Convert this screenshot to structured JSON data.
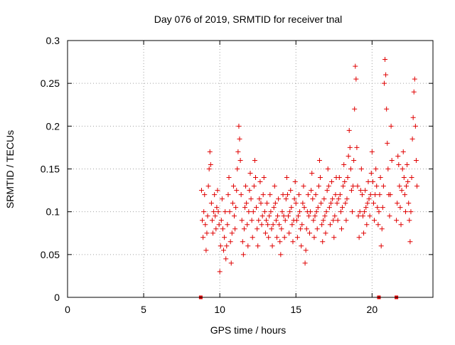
{
  "chart_data": {
    "type": "scatter",
    "title": "Day 076 of 2019, SRMTID for receiver tnal",
    "xlabel": "GPS time / hours",
    "ylabel": "SRMTID / TECUs",
    "xlim": [
      0,
      24
    ],
    "ylim": [
      0,
      0.3
    ],
    "x_ticks": [
      0,
      5,
      10,
      15,
      20
    ],
    "x_tick_labels": [
      "0",
      "5",
      "10",
      "15",
      "20"
    ],
    "y_ticks": [
      0,
      0.05,
      0.1,
      0.15,
      0.2,
      0.25,
      0.3
    ],
    "y_tick_labels": [
      "0",
      "0.05",
      "0.1",
      "0.15",
      "0.2",
      "0.25",
      "0.3"
    ],
    "grid": true,
    "marker": "plus",
    "color": "#e00000",
    "points": [
      [
        8.8,
        0.125
      ],
      [
        8.85,
        0.09
      ],
      [
        8.9,
        0.07
      ],
      [
        8.95,
        0.1
      ],
      [
        9.0,
        0.12
      ],
      [
        9.05,
        0.085
      ],
      [
        9.1,
        0.055
      ],
      [
        9.15,
        0.075
      ],
      [
        9.2,
        0.095
      ],
      [
        9.25,
        0.13
      ],
      [
        9.3,
        0.15
      ],
      [
        9.35,
        0.17
      ],
      [
        9.4,
        0.155
      ],
      [
        9.45,
        0.11
      ],
      [
        9.5,
        0.09
      ],
      [
        9.55,
        0.075
      ],
      [
        9.6,
        0.1
      ],
      [
        9.65,
        0.12
      ],
      [
        9.7,
        0.095
      ],
      [
        9.75,
        0.08
      ],
      [
        9.8,
        0.105
      ],
      [
        9.85,
        0.125
      ],
      [
        9.9,
        0.1
      ],
      [
        9.95,
        0.085
      ],
      [
        10.0,
        0.03
      ],
      [
        10.05,
        0.06
      ],
      [
        10.1,
        0.09
      ],
      [
        10.15,
        0.115
      ],
      [
        10.2,
        0.08
      ],
      [
        10.25,
        0.055
      ],
      [
        10.3,
        0.07
      ],
      [
        10.35,
        0.1
      ],
      [
        10.4,
        0.045
      ],
      [
        10.45,
        0.06
      ],
      [
        10.5,
        0.085
      ],
      [
        10.55,
        0.12
      ],
      [
        10.6,
        0.14
      ],
      [
        10.65,
        0.1
      ],
      [
        10.7,
        0.065
      ],
      [
        10.75,
        0.04
      ],
      [
        10.8,
        0.075
      ],
      [
        10.85,
        0.11
      ],
      [
        10.9,
        0.13
      ],
      [
        10.95,
        0.095
      ],
      [
        11.0,
        0.08
      ],
      [
        11.05,
        0.105
      ],
      [
        11.1,
        0.125
      ],
      [
        11.15,
        0.15
      ],
      [
        11.2,
        0.17
      ],
      [
        11.25,
        0.2
      ],
      [
        11.3,
        0.185
      ],
      [
        11.35,
        0.16
      ],
      [
        11.4,
        0.12
      ],
      [
        11.45,
        0.09
      ],
      [
        11.5,
        0.065
      ],
      [
        11.55,
        0.05
      ],
      [
        11.6,
        0.08
      ],
      [
        11.65,
        0.105
      ],
      [
        11.7,
        0.13
      ],
      [
        11.75,
        0.11
      ],
      [
        11.8,
        0.085
      ],
      [
        11.85,
        0.06
      ],
      [
        11.9,
        0.1
      ],
      [
        11.95,
        0.125
      ],
      [
        12.0,
        0.145
      ],
      [
        12.05,
        0.115
      ],
      [
        12.1,
        0.09
      ],
      [
        12.15,
        0.07
      ],
      [
        12.2,
        0.1
      ],
      [
        12.25,
        0.13
      ],
      [
        12.3,
        0.16
      ],
      [
        12.35,
        0.14
      ],
      [
        12.4,
        0.105
      ],
      [
        12.45,
        0.08
      ],
      [
        12.5,
        0.06
      ],
      [
        12.55,
        0.09
      ],
      [
        12.6,
        0.115
      ],
      [
        12.65,
        0.135
      ],
      [
        12.7,
        0.11
      ],
      [
        12.75,
        0.085
      ],
      [
        12.8,
        0.095
      ],
      [
        12.85,
        0.12
      ],
      [
        12.9,
        0.14
      ],
      [
        12.95,
        0.1
      ],
      [
        13.0,
        0.075
      ],
      [
        13.05,
        0.09
      ],
      [
        13.1,
        0.11
      ],
      [
        13.15,
        0.085
      ],
      [
        13.2,
        0.07
      ],
      [
        13.25,
        0.095
      ],
      [
        13.3,
        0.12
      ],
      [
        13.35,
        0.1
      ],
      [
        13.4,
        0.08
      ],
      [
        13.45,
        0.06
      ],
      [
        13.5,
        0.085
      ],
      [
        13.55,
        0.105
      ],
      [
        13.6,
        0.13
      ],
      [
        13.65,
        0.11
      ],
      [
        13.7,
        0.09
      ],
      [
        13.75,
        0.07
      ],
      [
        13.8,
        0.095
      ],
      [
        13.85,
        0.115
      ],
      [
        13.9,
        0.085
      ],
      [
        13.95,
        0.065
      ],
      [
        14.0,
        0.05
      ],
      [
        14.05,
        0.08
      ],
      [
        14.1,
        0.1
      ],
      [
        14.15,
        0.12
      ],
      [
        14.2,
        0.095
      ],
      [
        14.25,
        0.07
      ],
      [
        14.3,
        0.09
      ],
      [
        14.35,
        0.115
      ],
      [
        14.4,
        0.14
      ],
      [
        14.45,
        0.12
      ],
      [
        14.5,
        0.095
      ],
      [
        14.55,
        0.075
      ],
      [
        14.6,
        0.1
      ],
      [
        14.65,
        0.125
      ],
      [
        14.7,
        0.105
      ],
      [
        14.75,
        0.085
      ],
      [
        14.8,
        0.065
      ],
      [
        14.85,
        0.09
      ],
      [
        14.9,
        0.115
      ],
      [
        14.95,
        0.135
      ],
      [
        15.0,
        0.11
      ],
      [
        15.05,
        0.09
      ],
      [
        15.1,
        0.07
      ],
      [
        15.15,
        0.095
      ],
      [
        15.2,
        0.12
      ],
      [
        15.25,
        0.1
      ],
      [
        15.3,
        0.08
      ],
      [
        15.35,
        0.06
      ],
      [
        15.4,
        0.085
      ],
      [
        15.45,
        0.11
      ],
      [
        15.5,
        0.13
      ],
      [
        15.55,
        0.105
      ],
      [
        15.6,
        0.04
      ],
      [
        15.65,
        0.055
      ],
      [
        15.7,
        0.08
      ],
      [
        15.75,
        0.1
      ],
      [
        15.8,
        0.12
      ],
      [
        15.85,
        0.095
      ],
      [
        15.9,
        0.075
      ],
      [
        15.95,
        0.1
      ],
      [
        16.0,
        0.125
      ],
      [
        16.05,
        0.145
      ],
      [
        16.1,
        0.115
      ],
      [
        16.15,
        0.09
      ],
      [
        16.2,
        0.07
      ],
      [
        16.25,
        0.095
      ],
      [
        16.3,
        0.12
      ],
      [
        16.35,
        0.1
      ],
      [
        16.4,
        0.08
      ],
      [
        16.45,
        0.105
      ],
      [
        16.5,
        0.13
      ],
      [
        16.55,
        0.16
      ],
      [
        16.6,
        0.14
      ],
      [
        16.65,
        0.11
      ],
      [
        16.7,
        0.085
      ],
      [
        16.75,
        0.065
      ],
      [
        16.8,
        0.09
      ],
      [
        16.85,
        0.115
      ],
      [
        16.9,
        0.095
      ],
      [
        16.95,
        0.075
      ],
      [
        17.0,
        0.1
      ],
      [
        17.05,
        0.125
      ],
      [
        17.1,
        0.15
      ],
      [
        17.15,
        0.13
      ],
      [
        17.2,
        0.105
      ],
      [
        17.25,
        0.085
      ],
      [
        17.3,
        0.11
      ],
      [
        17.35,
        0.135
      ],
      [
        17.4,
        0.115
      ],
      [
        17.45,
        0.09
      ],
      [
        17.5,
        0.07
      ],
      [
        17.55,
        0.095
      ],
      [
        17.6,
        0.12
      ],
      [
        17.65,
        0.14
      ],
      [
        17.7,
        0.11
      ],
      [
        17.75,
        0.09
      ],
      [
        17.8,
        0.115
      ],
      [
        17.85,
        0.14
      ],
      [
        17.9,
        0.12
      ],
      [
        17.95,
        0.1
      ],
      [
        18.0,
        0.08
      ],
      [
        18.05,
        0.105
      ],
      [
        18.1,
        0.13
      ],
      [
        18.15,
        0.155
      ],
      [
        18.2,
        0.135
      ],
      [
        18.25,
        0.11
      ],
      [
        18.3,
        0.09
      ],
      [
        18.35,
        0.115
      ],
      [
        18.4,
        0.14
      ],
      [
        18.45,
        0.165
      ],
      [
        18.5,
        0.195
      ],
      [
        18.55,
        0.175
      ],
      [
        18.6,
        0.15
      ],
      [
        18.65,
        0.125
      ],
      [
        18.7,
        0.1
      ],
      [
        18.75,
        0.13
      ],
      [
        18.8,
        0.16
      ],
      [
        18.85,
        0.22
      ],
      [
        18.9,
        0.27
      ],
      [
        18.95,
        0.255
      ],
      [
        19.0,
        0.175
      ],
      [
        19.05,
        0.13
      ],
      [
        19.1,
        0.095
      ],
      [
        19.15,
        0.07
      ],
      [
        19.2,
        0.1
      ],
      [
        19.25,
        0.125
      ],
      [
        19.3,
        0.15
      ],
      [
        19.35,
        0.12
      ],
      [
        19.4,
        0.095
      ],
      [
        19.45,
        0.075
      ],
      [
        19.5,
        0.1
      ],
      [
        19.55,
        0.125
      ],
      [
        19.6,
        0.105
      ],
      [
        19.65,
        0.085
      ],
      [
        19.7,
        0.11
      ],
      [
        19.75,
        0.135
      ],
      [
        19.8,
        0.115
      ],
      [
        19.85,
        0.095
      ],
      [
        19.9,
        0.12
      ],
      [
        19.95,
        0.145
      ],
      [
        20.0,
        0.17
      ],
      [
        20.05,
        0.135
      ],
      [
        20.1,
        0.11
      ],
      [
        20.15,
        0.09
      ],
      [
        20.2,
        0.12
      ],
      [
        20.25,
        0.15
      ],
      [
        20.3,
        0.13
      ],
      [
        20.35,
        0.105
      ],
      [
        20.4,
        0.085
      ],
      [
        20.45,
        0.1
      ],
      [
        20.5,
        0.12
      ],
      [
        20.55,
        0.14
      ],
      [
        20.6,
        0.06
      ],
      [
        20.65,
        0.08
      ],
      [
        20.7,
        0.105
      ],
      [
        20.75,
        0.13
      ],
      [
        20.8,
        0.25
      ],
      [
        20.85,
        0.278
      ],
      [
        20.9,
        0.26
      ],
      [
        20.95,
        0.22
      ],
      [
        21.0,
        0.18
      ],
      [
        21.05,
        0.15
      ],
      [
        21.1,
        0.12
      ],
      [
        21.15,
        0.095
      ],
      [
        21.2,
        0.12
      ],
      [
        21.25,
        0.2
      ],
      [
        21.3,
        0.16
      ],
      [
        21.6,
        0.09
      ],
      [
        21.65,
        0.11
      ],
      [
        21.7,
        0.165
      ],
      [
        21.75,
        0.155
      ],
      [
        21.8,
        0.13
      ],
      [
        21.85,
        0.105
      ],
      [
        21.9,
        0.085
      ],
      [
        21.95,
        0.125
      ],
      [
        22.0,
        0.15
      ],
      [
        22.05,
        0.17
      ],
      [
        22.1,
        0.14
      ],
      [
        22.15,
        0.12
      ],
      [
        22.2,
        0.1
      ],
      [
        22.25,
        0.13
      ],
      [
        22.3,
        0.155
      ],
      [
        22.35,
        0.135
      ],
      [
        22.4,
        0.11
      ],
      [
        22.45,
        0.09
      ],
      [
        22.5,
        0.065
      ],
      [
        22.55,
        0.1
      ],
      [
        22.6,
        0.14
      ],
      [
        22.65,
        0.185
      ],
      [
        22.7,
        0.21
      ],
      [
        22.75,
        0.24
      ],
      [
        22.8,
        0.255
      ],
      [
        22.85,
        0.2
      ],
      [
        22.9,
        0.16
      ],
      [
        22.95,
        0.13
      ]
    ],
    "baseline_markers": [
      8.75,
      20.45,
      21.6
    ]
  }
}
